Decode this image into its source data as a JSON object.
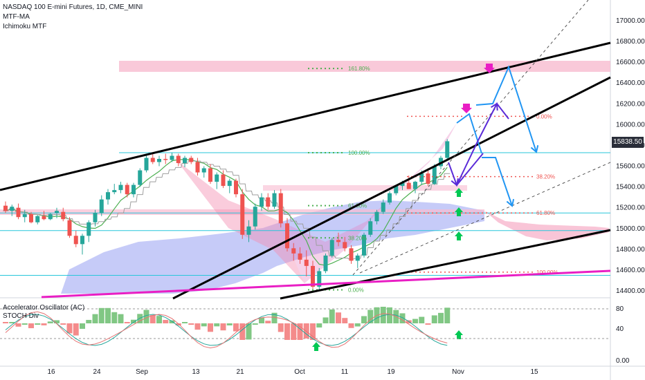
{
  "header": {
    "symbol_line": "NASDAQ 100 E-mini Futures, 1D, CME_MINI",
    "indicator_1": "MTF-MA",
    "indicator_2": "Ichimoku MTF"
  },
  "sub_pane": {
    "indicator_1": "Accelerator Oscillator (AC)",
    "indicator_2": "STOCH Div"
  },
  "last_price": "15838.50",
  "colors": {
    "bull": "#26a69a",
    "bear": "#ef5350",
    "trendline": "#000000",
    "target_arrow": "#2196f3",
    "path_arrow": "#5b2bd8",
    "magenta_line": "#e91ec4",
    "fib_green": "#4caf50",
    "fib_red": "#ef5350",
    "cloud_blue": "#b3b9f5",
    "zone_pink": "#f8bbd0"
  },
  "chart_data": {
    "type": "candlestick",
    "title": "NASDAQ 100 E-mini Futures, 1D, CME_MINI",
    "y_ticks": [
      "17000.00",
      "16800.00",
      "16600.00",
      "16400.00",
      "16200.00",
      "16000.00",
      "15800.00",
      "15600.00",
      "15400.00",
      "15200.00",
      "15000.00",
      "14800.00",
      "14600.00",
      "14400.00"
    ],
    "x_ticks": [
      "16",
      "24",
      "Sep",
      "13",
      "21",
      "Oct",
      "11",
      "19",
      "Nov",
      "15"
    ],
    "sub_y_ticks": [
      "80",
      "40",
      "0.00"
    ],
    "ylim": [
      14360,
      17200
    ],
    "fib_levels_left": [
      {
        "label": "161.80%",
        "value": 16540
      },
      {
        "label": "100.00%",
        "value": 15730
      },
      {
        "label": "61.80%",
        "value": 15220
      },
      {
        "label": "38.20%",
        "value": 14910
      },
      {
        "label": "0.00%",
        "value": 14410
      }
    ],
    "fib_levels_right": [
      {
        "label": "0.00%",
        "value": 16080
      },
      {
        "label": "38.20%",
        "value": 15500
      },
      {
        "label": "61.80%",
        "value": 15150
      },
      {
        "label": "100.00%",
        "value": 14580
      }
    ],
    "horizontal_lines": [
      15730,
      15150,
      14980,
      14550
    ],
    "candles": [
      [
        15220,
        15260,
        15150,
        15170
      ],
      [
        15170,
        15230,
        15120,
        15210
      ],
      [
        15200,
        15240,
        15090,
        15110
      ],
      [
        15110,
        15180,
        15060,
        15140
      ],
      [
        15140,
        15160,
        15050,
        15060
      ],
      [
        15060,
        15130,
        15040,
        15120
      ],
      [
        15120,
        15170,
        15080,
        15090
      ],
      [
        15090,
        15150,
        15080,
        15140
      ],
      [
        15150,
        15200,
        15100,
        15170
      ],
      [
        15160,
        15200,
        15070,
        15090
      ],
      [
        15080,
        15110,
        14910,
        14930
      ],
      [
        14930,
        14980,
        14820,
        14850
      ],
      [
        14850,
        14950,
        14750,
        14930
      ],
      [
        14930,
        15080,
        14870,
        15060
      ],
      [
        15060,
        15180,
        15020,
        15150
      ],
      [
        15150,
        15320,
        15120,
        15280
      ],
      [
        15280,
        15380,
        15230,
        15350
      ],
      [
        15350,
        15430,
        15330,
        15370
      ],
      [
        15370,
        15450,
        15340,
        15420
      ],
      [
        15420,
        15440,
        15300,
        15330
      ],
      [
        15330,
        15440,
        15300,
        15420
      ],
      [
        15420,
        15580,
        15400,
        15560
      ],
      [
        15560,
        15710,
        15540,
        15680
      ],
      [
        15680,
        15720,
        15620,
        15640
      ],
      [
        15640,
        15700,
        15600,
        15670
      ],
      [
        15670,
        15720,
        15620,
        15660
      ],
      [
        15660,
        15730,
        15640,
        15700
      ],
      [
        15700,
        15720,
        15600,
        15630
      ],
      [
        15630,
        15700,
        15590,
        15680
      ],
      [
        15680,
        15700,
        15620,
        15640
      ],
      [
        15640,
        15680,
        15510,
        15540
      ],
      [
        15540,
        15600,
        15490,
        15580
      ],
      [
        15580,
        15620,
        15430,
        15450
      ],
      [
        15450,
        15540,
        15380,
        15520
      ],
      [
        15520,
        15560,
        15390,
        15410
      ],
      [
        15410,
        15480,
        15340,
        15460
      ],
      [
        15460,
        15480,
        15300,
        15330
      ],
      [
        15330,
        15380,
        14900,
        14940
      ],
      [
        14940,
        15080,
        14870,
        15020
      ],
      [
        15020,
        15240,
        14990,
        15210
      ],
      [
        15210,
        15340,
        15170,
        15300
      ],
      [
        15300,
        15340,
        15180,
        15210
      ],
      [
        15210,
        15370,
        15190,
        15340
      ],
      [
        15340,
        15380,
        15010,
        15050
      ],
      [
        15050,
        15100,
        14780,
        14810
      ],
      [
        14810,
        14860,
        14690,
        14760
      ],
      [
        14760,
        14820,
        14660,
        14700
      ],
      [
        14700,
        14790,
        14540,
        14640
      ],
      [
        14640,
        14690,
        14420,
        14440
      ],
      [
        14440,
        14620,
        14400,
        14590
      ],
      [
        14590,
        14760,
        14570,
        14740
      ],
      [
        14740,
        14910,
        14720,
        14890
      ],
      [
        14890,
        14960,
        14830,
        14870
      ],
      [
        14870,
        14920,
        14780,
        14810
      ],
      [
        14810,
        14840,
        14660,
        14690
      ],
      [
        14690,
        14760,
        14620,
        14740
      ],
      [
        14740,
        14960,
        14720,
        14940
      ],
      [
        14940,
        15100,
        14920,
        15070
      ],
      [
        15070,
        15180,
        15040,
        15160
      ],
      [
        15160,
        15280,
        15140,
        15250
      ],
      [
        15250,
        15360,
        15230,
        15340
      ],
      [
        15340,
        15420,
        15320,
        15410
      ],
      [
        15410,
        15460,
        15370,
        15440
      ],
      [
        15440,
        15510,
        15380,
        15380
      ],
      [
        15380,
        15460,
        15340,
        15450
      ],
      [
        15450,
        15560,
        15420,
        15530
      ],
      [
        15530,
        15580,
        15410,
        15430
      ],
      [
        15430,
        15620,
        15420,
        15600
      ],
      [
        15600,
        15700,
        15570,
        15680
      ],
      [
        15680,
        15860,
        15660,
        15840
      ]
    ]
  }
}
